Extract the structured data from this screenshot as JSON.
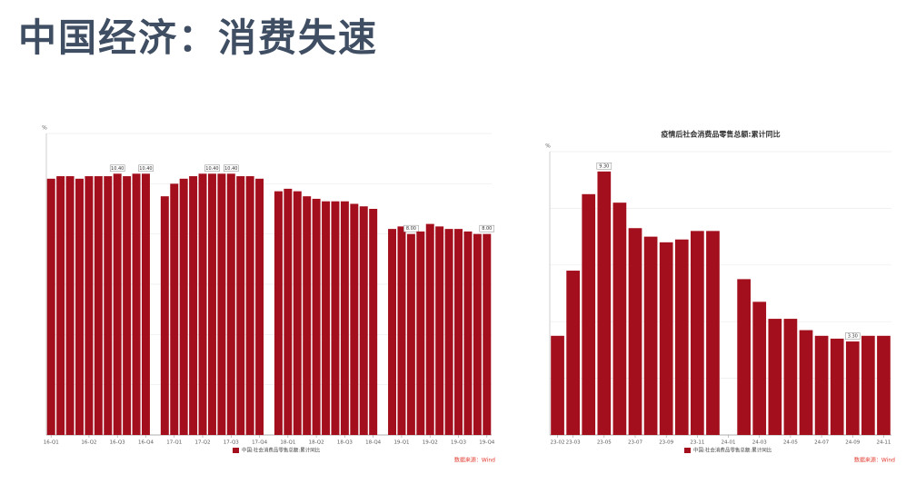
{
  "title": "中国经济：消费失速",
  "chart_data": [
    {
      "type": "bar",
      "y_label": "%",
      "source": "数据来源：Wind",
      "categories": [
        "16-Q1",
        null,
        null,
        null,
        "16-Q2",
        null,
        null,
        "16-Q3",
        null,
        null,
        "16-Q4",
        null,
        null,
        "17-Q1",
        null,
        null,
        "17-Q2",
        null,
        null,
        "17-Q3",
        null,
        null,
        "17-Q4",
        null,
        null,
        "18-Q1",
        null,
        null,
        "18-Q2",
        null,
        null,
        "18-Q3",
        null,
        null,
        "18-Q4",
        null,
        null,
        "19-Q1",
        null,
        null,
        "19-Q2",
        null,
        null,
        "19-Q3",
        null,
        null,
        "19-Q4"
      ],
      "series": [
        {
          "name": "中国:社会消费品零售总额:累计同比",
          "color": "#a30f1d",
          "values": [
            10.2,
            10.3,
            10.3,
            10.2,
            10.3,
            10.3,
            10.3,
            10.4,
            10.3,
            10.4,
            10.4,
            null,
            9.5,
            10.0,
            10.2,
            10.3,
            10.4,
            10.4,
            10.4,
            10.4,
            10.3,
            10.3,
            10.2,
            null,
            9.7,
            9.8,
            9.7,
            9.5,
            9.4,
            9.3,
            9.3,
            9.3,
            9.2,
            9.1,
            9.0,
            null,
            8.2,
            8.3,
            8.0,
            8.1,
            8.4,
            8.3,
            8.2,
            8.2,
            8.1,
            8.0,
            8.0
          ],
          "value_labels": [
            null,
            null,
            null,
            null,
            null,
            null,
            null,
            "10.40",
            null,
            null,
            "10.40",
            null,
            null,
            null,
            null,
            null,
            null,
            "10.40",
            null,
            "10.40",
            null,
            null,
            null,
            null,
            null,
            null,
            null,
            null,
            null,
            null,
            null,
            null,
            null,
            null,
            null,
            null,
            null,
            null,
            "8.00",
            null,
            null,
            null,
            null,
            null,
            null,
            null,
            "8.00"
          ]
        }
      ],
      "ylim": [
        0,
        12
      ],
      "yticks": [
        0,
        2,
        4,
        6,
        8,
        10,
        12
      ],
      "grid": true
    },
    {
      "type": "bar",
      "title": "疫情后社会消费品零售总额:累计同比",
      "y_label": "%",
      "source": "数据来源：Wind",
      "categories": [
        "23-02",
        "23-03",
        null,
        "23-05",
        null,
        "23-07",
        null,
        "23-09",
        null,
        "23-11",
        null,
        "24-01",
        null,
        "24-03",
        null,
        "24-05",
        null,
        "24-07",
        null,
        "24-09",
        null,
        "24-11"
      ],
      "series": [
        {
          "name": "中国:社会消费品零售总额:累计同比",
          "color": "#a30f1d",
          "values": [
            3.5,
            5.8,
            8.5,
            9.3,
            8.2,
            7.3,
            7.0,
            6.8,
            6.9,
            7.2,
            7.2,
            null,
            5.5,
            4.7,
            4.1,
            4.1,
            3.7,
            3.5,
            3.4,
            3.3,
            3.5,
            3.5
          ],
          "value_labels": [
            null,
            null,
            null,
            "9.30",
            null,
            null,
            null,
            null,
            null,
            null,
            null,
            null,
            null,
            null,
            null,
            null,
            null,
            null,
            null,
            "3.30",
            null,
            null
          ]
        }
      ],
      "ylim": [
        0,
        10
      ],
      "yticks": [
        0,
        2,
        4,
        6,
        8,
        10
      ],
      "grid": true
    }
  ]
}
